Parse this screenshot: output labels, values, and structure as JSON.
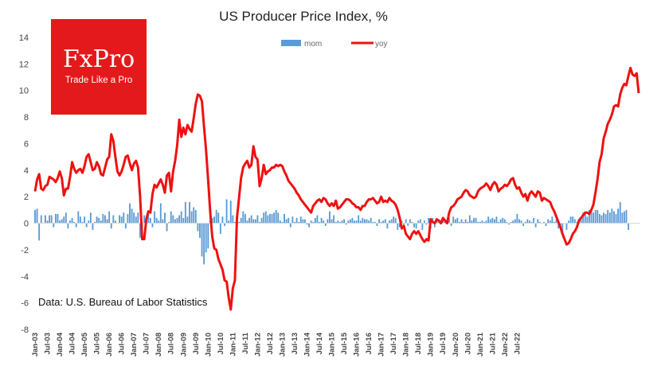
{
  "logo": {
    "brand": "FxPro",
    "tagline": "Trade Like a Pro",
    "color": "#e3191b"
  },
  "source_note": "Data: U.S. Bureau of Labor Statistics",
  "chart_data": {
    "type": "bar+line",
    "title": "US Producer Price Index, %",
    "xlabel": "",
    "ylabel": "",
    "ylim": [
      -8,
      14
    ],
    "yticks": [
      -8,
      -6,
      -4,
      -2,
      0,
      2,
      4,
      6,
      8,
      10,
      12,
      14
    ],
    "grid": false,
    "legend_position": "top-center",
    "x_start": "Jan-03",
    "x_end": "Jul-22",
    "x_tick_labels": [
      "Jan-03",
      "Jul-03",
      "Jan-04",
      "Jul-04",
      "Jan-05",
      "Jul-05",
      "Jan-06",
      "Jul-06",
      "Jan-07",
      "Jul-07",
      "Jan-08",
      "Jul-08",
      "Jan-09",
      "Jul-09",
      "Jan-10",
      "Jul-10",
      "Jan-11",
      "Jul-11",
      "Jan-12",
      "Jul-12",
      "Jan-13",
      "Jul-13",
      "Jan-14",
      "Jul-14",
      "Jan-15",
      "Jul-15",
      "Jan-16",
      "Jul-16",
      "Jan-17",
      "Jul-17",
      "Jan-18",
      "Jul-18",
      "Jan-19",
      "Jul-19",
      "Jan-20",
      "Jul-20",
      "Jan-21",
      "Jul-21",
      "Jan-22",
      "Jul-22"
    ],
    "series": [
      {
        "name": "mom",
        "kind": "bar",
        "color": "#5b9bd5",
        "values": [
          1.0,
          1.1,
          -1.3,
          0.6,
          0.0,
          0.6,
          0.2,
          0.6,
          0.6,
          -0.3,
          0.7,
          0.7,
          0.2,
          0.3,
          0.5,
          0.8,
          -0.4,
          0.2,
          0.4,
          0.1,
          -0.3,
          0.9,
          0.5,
          0.1,
          0.5,
          -0.3,
          0.2,
          0.8,
          -0.5,
          0.1,
          0.5,
          0.4,
          0.2,
          0.7,
          0.6,
          0.3,
          0.9,
          -0.4,
          0.6,
          0.2,
          0.0,
          0.6,
          0.5,
          0.8,
          -0.4,
          0.7,
          1.5,
          1.1,
          0.8,
          0.5,
          0.8,
          -1.1,
          -0.6,
          0.6,
          0.3,
          0.7,
          0.4,
          -0.3,
          0.9,
          0.4,
          0.2,
          1.5,
          0.3,
          0.8,
          -0.6,
          0.1,
          0.9,
          0.6,
          0.3,
          0.4,
          0.6,
          0.9,
          0.4,
          1.6,
          0.5,
          1.6,
          0.9,
          1.2,
          1.0,
          -0.6,
          -1.1,
          -2.5,
          -3.1,
          -2.2,
          -1.9,
          0.2,
          0.4,
          0.5,
          1.0,
          0.8,
          -0.8,
          0.5,
          -0.2,
          1.8,
          0.2,
          1.7,
          0.6,
          0.1,
          0.6,
          0.1,
          0.4,
          0.9,
          0.7,
          0.2,
          0.4,
          0.6,
          0.3,
          0.3,
          0.6,
          0.1,
          0.4,
          0.8,
          0.9,
          0.6,
          0.7,
          0.7,
          0.8,
          1.0,
          0.8,
          0.2,
          0.1,
          0.7,
          0.3,
          0.4,
          -0.3,
          0.5,
          0.1,
          0.4,
          0.1,
          0.5,
          0.3,
          0.3,
          -0.1,
          -0.3,
          0.2,
          0.1,
          0.4,
          0.6,
          0.1,
          0.4,
          0.2,
          -0.2,
          0.3,
          0.9,
          0.3,
          0.6,
          0.1,
          0.2,
          0.1,
          0.2,
          0.3,
          -0.1,
          0.2,
          0.3,
          0.4,
          0.2,
          0.2,
          0.6,
          0.2,
          0.4,
          0.3,
          0.3,
          0.2,
          0.4,
          0.1,
          0.1,
          -0.2,
          0.3,
          0.1,
          0.2,
          0.3,
          -0.4,
          0.2,
          0.3,
          0.5,
          0.4,
          -0.5,
          -0.3,
          0.2,
          -0.1,
          0.3,
          -0.2,
          0.3,
          0.1,
          -0.3,
          -0.4,
          0.2,
          0.3,
          -0.5,
          0.2,
          -0.1,
          0.4,
          -0.4,
          0.4,
          -0.3,
          0.2,
          0.2,
          0.1,
          0.3,
          0.3,
          0.2,
          0.4,
          -0.2,
          0.5,
          0.3,
          0.4,
          0.1,
          0.3,
          0.1,
          0.3,
          0.1,
          0.6,
          0.2,
          0.4,
          0.4,
          0.1,
          0.1,
          0.2,
          0.1,
          0.2,
          0.5,
          0.3,
          0.4,
          0.3,
          0.5,
          0.1,
          0.3,
          0.4,
          0.3,
          0.1,
          -0.1,
          0.1,
          0.2,
          0.3,
          0.7,
          0.3,
          0.2,
          -0.2,
          0.1,
          0.3,
          0.2,
          0.1,
          0.4,
          -0.3,
          0.3,
          0.1,
          0.0,
          0.1,
          -0.2,
          0.3,
          0.2,
          0.5,
          0.1,
          0.3,
          -0.4,
          -0.3,
          -0.8,
          0.0,
          -0.5,
          0.2,
          0.5,
          0.5,
          0.3,
          0.1,
          0.3,
          0.4,
          0.8,
          0.9,
          0.5,
          1.0,
          1.0,
          0.8,
          1.0,
          1.0,
          0.7,
          0.6,
          0.8,
          0.7,
          1.0,
          0.8,
          1.1,
          0.9,
          0.7,
          1.1,
          1.6,
          0.8,
          0.9,
          1.0,
          -0.5
        ]
      },
      {
        "name": "yoy",
        "kind": "line",
        "color": "#ee1111",
        "values": [
          2.4,
          3.3,
          3.7,
          2.6,
          2.5,
          2.8,
          2.9,
          3.5,
          3.4,
          3.3,
          3.1,
          3.4,
          3.9,
          3.4,
          2.1,
          2.6,
          2.6,
          3.5,
          4.6,
          4.1,
          3.8,
          4.0,
          4.1,
          3.8,
          4.3,
          5.0,
          5.2,
          4.6,
          4.0,
          4.1,
          4.6,
          4.3,
          3.7,
          3.6,
          4.2,
          4.8,
          5.0,
          6.7,
          6.2,
          5.0,
          3.9,
          3.6,
          3.9,
          4.4,
          5.0,
          5.1,
          4.5,
          4.0,
          4.5,
          4.7,
          4.2,
          2.0,
          -1.2,
          -1.2,
          0.3,
          0.9,
          0.8,
          2.2,
          2.9,
          2.7,
          3.0,
          3.3,
          2.9,
          2.3,
          3.6,
          3.8,
          2.4,
          3.9,
          4.7,
          5.9,
          7.8,
          6.5,
          7.2,
          6.7,
          7.4,
          7.1,
          6.9,
          7.9,
          9.0,
          9.7,
          9.6,
          9.2,
          7.3,
          5.5,
          3.3,
          0.9,
          -1.0,
          -1.9,
          -2.0,
          -2.7,
          -3.1,
          -3.5,
          -4.3,
          -4.4,
          -5.6,
          -6.5,
          -4.9,
          -4.3,
          0.4,
          1.9,
          3.4,
          4.2,
          4.5,
          4.7,
          4.2,
          4.4,
          5.8,
          5.0,
          4.8,
          2.8,
          3.4,
          4.4,
          3.7,
          3.9,
          4.0,
          4.2,
          4.2,
          4.4,
          4.3,
          4.4,
          4.3,
          3.9,
          3.6,
          3.2,
          3.0,
          2.8,
          2.6,
          2.3,
          2.1,
          1.8,
          1.6,
          1.4,
          1.2,
          1.0,
          0.8,
          1.3,
          1.5,
          1.7,
          1.8,
          1.6,
          1.9,
          1.8,
          1.5,
          1.3,
          1.5,
          1.3,
          1.7,
          1.1,
          1.2,
          1.4,
          1.6,
          1.8,
          1.8,
          1.7,
          1.5,
          1.4,
          1.2,
          1.2,
          1.0,
          1.3,
          1.3,
          1.6,
          1.8,
          1.8,
          1.9,
          1.7,
          1.5,
          1.6,
          2.0,
          1.6,
          1.7,
          1.6,
          1.9,
          1.7,
          1.6,
          1.4,
          1.0,
          0.4,
          -0.4,
          -0.2,
          -0.8,
          -1.0,
          -1.2,
          -0.8,
          -0.6,
          -0.8,
          -0.6,
          -0.9,
          -1.2,
          -1.4,
          -1.2,
          -1.3,
          0.3,
          0.1,
          0.0,
          0.3,
          0.2,
          0.0,
          0.4,
          0.2,
          0.0,
          0.8,
          1.2,
          1.3,
          1.5,
          1.8,
          1.9,
          2.0,
          2.3,
          2.5,
          2.4,
          2.1,
          2.0,
          1.9,
          2.0,
          2.4,
          2.6,
          2.7,
          2.8,
          3.0,
          2.8,
          2.5,
          2.9,
          3.1,
          2.9,
          2.4,
          2.6,
          2.7,
          2.9,
          2.8,
          3.0,
          3.3,
          3.4,
          2.9,
          2.6,
          2.7,
          2.3,
          2.0,
          2.2,
          1.7,
          2.2,
          2.4,
          2.2,
          2.0,
          2.4,
          2.3,
          1.7,
          1.9,
          1.8,
          1.7,
          1.6,
          1.2,
          0.9,
          0.5,
          0.1,
          -0.3,
          -0.8,
          -1.2,
          -1.6,
          -1.5,
          -1.2,
          -0.8,
          -0.6,
          -0.3,
          0.2,
          0.4,
          0.6,
          0.8,
          0.8,
          0.7,
          1.0,
          1.4,
          2.3,
          3.3,
          4.6,
          5.2,
          6.4,
          6.9,
          7.5,
          7.8,
          8.2,
          8.8,
          8.9,
          8.8,
          9.7,
          10.2,
          10.5,
          10.4,
          11.1,
          11.7,
          11.2,
          11.1,
          11.3,
          9.8
        ]
      }
    ]
  }
}
